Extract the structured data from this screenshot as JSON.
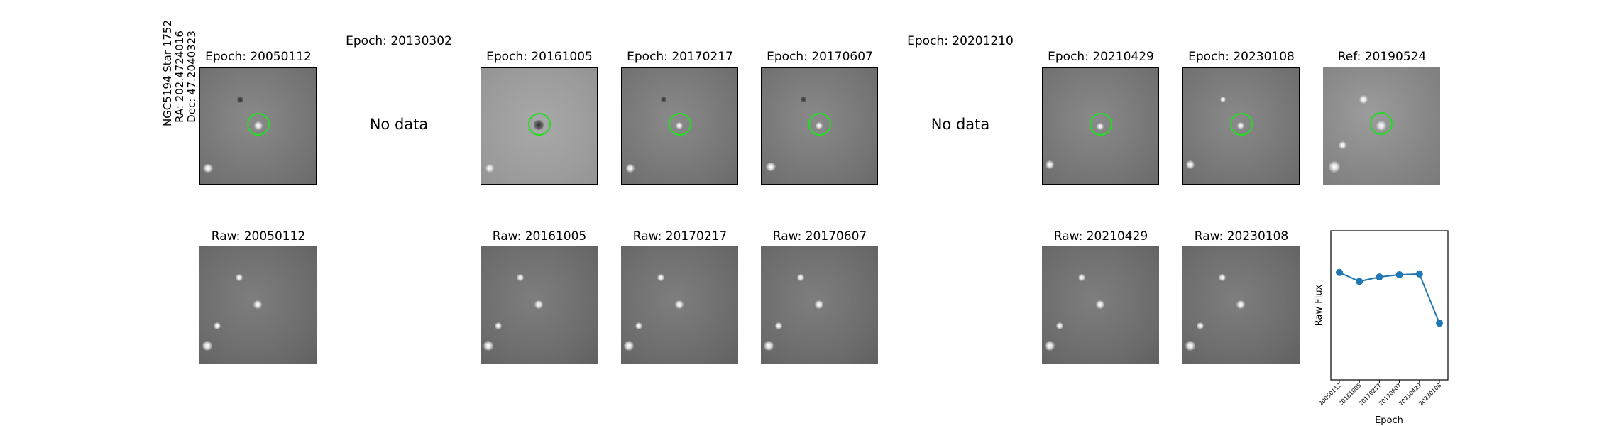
{
  "star_info": {
    "name": "NGC5194 Star 1752",
    "ra": "RA: 202.4724016",
    "dec": "Dec: 47.2040323"
  },
  "top_row": [
    {
      "title": "Epoch: 20050112",
      "has_data": true
    },
    {
      "title": "Epoch: 20130302",
      "has_data": false,
      "message": "No data"
    },
    {
      "title": "Epoch: 20161005",
      "has_data": true
    },
    {
      "title": "Epoch: 20170217",
      "has_data": true
    },
    {
      "title": "Epoch: 20170607",
      "has_data": true
    },
    {
      "title": "Epoch: 20201210",
      "has_data": false,
      "message": "No data"
    },
    {
      "title": "Epoch: 20210429",
      "has_data": true
    },
    {
      "title": "Epoch: 20230108",
      "has_data": true
    },
    {
      "title": "Ref: 20190524",
      "has_data": true
    }
  ],
  "bottom_row": [
    {
      "title": "Raw: 20050112"
    },
    {
      "title": "Raw: 20161005"
    },
    {
      "title": "Raw: 20170217"
    },
    {
      "title": "Raw: 20170607"
    },
    {
      "title": "Raw: 20210429"
    },
    {
      "title": "Raw: 20230108"
    }
  ],
  "colors": {
    "circle": "#22dd22",
    "line": "#1f77b4"
  },
  "chart_data": {
    "type": "line",
    "title": "",
    "xlabel": "Epoch",
    "ylabel": "Raw Flux",
    "categories": [
      "20050112",
      "20161005",
      "20170217",
      "20170607",
      "20210429",
      "20230108"
    ],
    "series": [
      {
        "values": [
          0.72,
          0.66,
          0.69,
          0.705,
          0.71,
          0.38
        ]
      }
    ],
    "ylim": [
      0,
      1
    ],
    "grid": false,
    "y_tick_labels": false
  }
}
